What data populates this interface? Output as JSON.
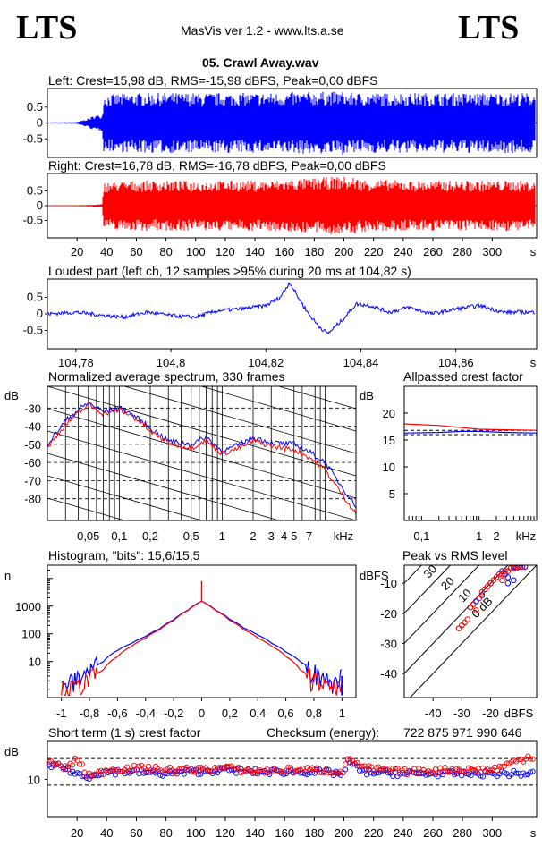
{
  "header": {
    "logo_left": "LTS",
    "logo_right": "LTS",
    "app_title": "MasVis ver 1.2 - www.lts.a.se",
    "file_title": "05. Crawl Away.wav"
  },
  "chart_data": [
    {
      "id": "left",
      "type": "line",
      "title": "Left: Crest=15,98 dB, RMS=-15,98 dBFS, Peak=0,00 dBFS",
      "color": "#0000ff",
      "ylim": [
        -1,
        1
      ],
      "yticks": [
        "0.5",
        "0",
        "-0.5"
      ],
      "xlim": [
        0,
        330
      ],
      "envelope": {
        "x": [
          0,
          20,
          28,
          32,
          37,
          38,
          60,
          100,
          104.8,
          106,
          150,
          200,
          203,
          207,
          210,
          250,
          300,
          330
        ],
        "amp": [
          0.02,
          0.03,
          0.15,
          0.25,
          0.25,
          0.9,
          0.95,
          0.95,
          0.9,
          0.95,
          0.95,
          1.0,
          0.9,
          1.0,
          0.95,
          0.95,
          0.95,
          0.95
        ]
      }
    },
    {
      "id": "right",
      "type": "line",
      "title": "Right: Crest=16,78 dB, RMS=-16,78 dBFS, Peak=0,00 dBFS",
      "color": "#ff0000",
      "ylim": [
        -1,
        1
      ],
      "yticks": [
        "0.5",
        "0",
        "-0.5"
      ],
      "xlim": [
        0,
        330
      ],
      "xticks": [
        "20",
        "40",
        "60",
        "80",
        "100",
        "120",
        "140",
        "160",
        "180",
        "200",
        "220",
        "240",
        "260",
        "280",
        "300"
      ],
      "xunit": "s",
      "envelope": {
        "x": [
          0,
          20,
          30,
          37,
          38,
          60,
          100,
          150,
          200,
          203,
          207,
          210,
          250,
          300,
          330
        ],
        "amp": [
          0.01,
          0.02,
          0.03,
          0.05,
          0.8,
          0.85,
          0.85,
          0.85,
          1.0,
          0.9,
          1.0,
          0.9,
          0.85,
          0.85,
          0.85
        ]
      }
    },
    {
      "id": "loudest",
      "type": "line",
      "title": "Loudest part (left  ch, 12 samples >95% during 20 ms at 104,82 s)",
      "color": "#0000ff",
      "ylim": [
        -1,
        1
      ],
      "yticks": [
        "0.5",
        "0",
        "-0.5"
      ],
      "xlim": [
        104.774,
        104.877
      ],
      "xticks": [
        "104,78",
        "104,8",
        "104,82",
        "104,84",
        "104,86"
      ],
      "xunit": "s",
      "x": [
        104.774,
        104.78,
        104.786,
        104.79,
        104.795,
        104.8,
        104.805,
        104.81,
        104.815,
        104.82,
        104.823,
        104.825,
        104.827,
        104.829,
        104.831,
        104.833,
        104.836,
        104.839,
        104.842,
        104.846,
        104.85,
        104.855,
        104.86,
        104.865,
        104.87,
        104.877
      ],
      "y": [
        0.0,
        0.05,
        -0.05,
        -0.1,
        0.05,
        -0.05,
        -0.1,
        0.1,
        0.15,
        0.25,
        0.5,
        0.95,
        0.45,
        0.0,
        -0.35,
        -0.6,
        -0.2,
        0.3,
        0.25,
        0.05,
        0.2,
        0.0,
        0.15,
        0.25,
        0.05,
        0.05
      ]
    },
    {
      "id": "spectrum",
      "type": "line",
      "title": "Normalized average spectrum, 330 frames",
      "ylabel": "dB",
      "ylim": [
        -92,
        -18
      ],
      "yticks": [
        "-30",
        "-40",
        "-50",
        "-60",
        "-70",
        "-80"
      ],
      "xscale": "log",
      "xlim": [
        0.02,
        20
      ],
      "xticks": [
        "0,05",
        "0,1",
        "0,2",
        "0,5",
        "1",
        "2",
        "3",
        "4",
        "5",
        "7"
      ],
      "xunit": "kHz",
      "series": [
        {
          "color": "#0000ff",
          "x": [
            0.02,
            0.03,
            0.04,
            0.05,
            0.07,
            0.1,
            0.13,
            0.17,
            0.2,
            0.3,
            0.5,
            0.7,
            1,
            1.5,
            2,
            3,
            5,
            7,
            10,
            14,
            20
          ],
          "y": [
            -50,
            -37,
            -31,
            -27,
            -32,
            -30,
            -33,
            -38,
            -41,
            -48,
            -50,
            -46,
            -54,
            -50,
            -46,
            -49,
            -50,
            -54,
            -60,
            -72,
            -84
          ]
        },
        {
          "color": "#ff0000",
          "x": [
            0.02,
            0.03,
            0.04,
            0.05,
            0.07,
            0.1,
            0.13,
            0.17,
            0.2,
            0.3,
            0.5,
            0.7,
            1,
            1.5,
            2,
            3,
            5,
            7,
            10,
            14,
            20
          ],
          "y": [
            -52,
            -39,
            -33,
            -28,
            -33,
            -31,
            -34,
            -39,
            -43,
            -49,
            -52,
            -48,
            -55,
            -52,
            -48,
            -51,
            -53,
            -57,
            -64,
            -76,
            -88
          ]
        }
      ]
    },
    {
      "id": "allpassed",
      "type": "line",
      "title": "Allpassed crest factor",
      "ylabel": "dB",
      "ylim": [
        0,
        25
      ],
      "yticks": [
        "20",
        "15",
        "10",
        "5"
      ],
      "xscale": "log",
      "xlim": [
        0.05,
        10
      ],
      "xticks": [
        "0,1",
        "1",
        "2"
      ],
      "xunit": "kHz",
      "refs": [
        16.0,
        16.8
      ],
      "series": [
        {
          "color": "#0000ff",
          "x": [
            0.05,
            0.2,
            0.5,
            1,
            3,
            10
          ],
          "y": [
            16.3,
            16.4,
            16.6,
            16.6,
            16.4,
            16.3
          ]
        },
        {
          "color": "#ff0000",
          "x": [
            0.05,
            0.2,
            0.5,
            1,
            3,
            10
          ],
          "y": [
            18.0,
            17.7,
            17.3,
            17.0,
            16.9,
            16.8
          ]
        }
      ]
    },
    {
      "id": "histogram",
      "type": "line",
      "title": "Histogram, \"bits\": 15,6/15,5",
      "ylabel": "n",
      "yscale": "log",
      "ylim": [
        0.5,
        30000
      ],
      "yticks": [
        "1000",
        "100",
        "10"
      ],
      "xlim": [
        -1.1,
        1.1
      ],
      "xticks": [
        "-1",
        "-0,8",
        "-0,6",
        "-0,4",
        "-0,2",
        "0",
        "0,2",
        "0,4",
        "0,6",
        "0,8",
        "1"
      ],
      "series": [
        {
          "color": "#0000ff",
          "x": [
            -1,
            -0.9,
            -0.8,
            -0.7,
            -0.6,
            -0.5,
            -0.4,
            -0.3,
            -0.2,
            -0.1,
            -0.05,
            0,
            0.05,
            0.1,
            0.2,
            0.3,
            0.4,
            0.5,
            0.6,
            0.7,
            0.8,
            0.9,
            1
          ],
          "y": [
            1,
            2,
            4,
            10,
            25,
            45,
            80,
            150,
            320,
            700,
            1100,
            1500,
            1100,
            700,
            330,
            160,
            90,
            45,
            22,
            10,
            4,
            2,
            3
          ]
        },
        {
          "color": "#ff0000",
          "x": [
            -1,
            -0.9,
            -0.8,
            -0.7,
            -0.6,
            -0.5,
            -0.4,
            -0.3,
            -0.2,
            -0.1,
            -0.05,
            0,
            0.05,
            0.1,
            0.2,
            0.3,
            0.4,
            0.5,
            0.6,
            0.7,
            0.8,
            0.9,
            1
          ],
          "y": [
            1,
            1,
            2,
            5,
            15,
            35,
            70,
            140,
            300,
            680,
            1050,
            1500,
            1050,
            680,
            300,
            140,
            70,
            35,
            15,
            5,
            2,
            1,
            1
          ]
        }
      ],
      "spike": 8000
    },
    {
      "id": "peakrms",
      "type": "scatter",
      "title": "Peak vs RMS level",
      "ylabel": "dBFS",
      "xunit": "dBFS",
      "xlim": [
        -50,
        -4
      ],
      "ylim": [
        -48,
        -4
      ],
      "xticks": [
        "-40",
        "-30",
        "-20"
      ],
      "yticks": [
        "-10",
        "-20",
        "-30",
        "-40"
      ],
      "diag_labels": [
        "40",
        "30",
        "20",
        "10",
        "0 dB"
      ],
      "series": [
        {
          "color": "#0000ff",
          "x": [
            -27,
            -25,
            -23,
            -22,
            -20,
            -18,
            -16,
            -15,
            -14,
            -13,
            -12,
            -11,
            -10,
            -9,
            -8,
            -14,
            -12
          ],
          "y": [
            -18,
            -16,
            -14,
            -12,
            -10,
            -8,
            -6,
            -7,
            -8,
            -5,
            -4.5,
            -5,
            -4.5,
            -4.5,
            -4.5,
            -10,
            -9
          ]
        },
        {
          "color": "#ff0000",
          "x": [
            -31,
            -30,
            -29,
            -28,
            -27,
            -26,
            -24,
            -22,
            -21,
            -20,
            -19,
            -18,
            -17,
            -16,
            -15,
            -14,
            -13,
            -12,
            -11,
            -10,
            -9,
            -16,
            -25,
            -23
          ],
          "y": [
            -25,
            -24,
            -23,
            -22,
            -18,
            -17,
            -15,
            -12,
            -11,
            -10,
            -9,
            -8,
            -7,
            -7,
            -6,
            -6,
            -5,
            -5,
            -4.5,
            -4.5,
            -4.5,
            -9,
            -19,
            -13
          ]
        }
      ]
    },
    {
      "id": "crest",
      "type": "scatter",
      "title": "Short term (1 s) crest factor",
      "ylabel": "dB",
      "ylim": [
        0,
        20
      ],
      "yticks": [
        "10"
      ],
      "xlim": [
        0,
        330
      ],
      "xticks": [
        "20",
        "40",
        "60",
        "80",
        "100",
        "120",
        "140",
        "160",
        "180",
        "200",
        "220",
        "240",
        "260",
        "280",
        "300"
      ],
      "xunit": "s",
      "refs": [
        8.5,
        15.5
      ],
      "series": [
        {
          "color": "#0000ff",
          "x": [
            2,
            8,
            14,
            20,
            26,
            32,
            40,
            60,
            80,
            100,
            120,
            140,
            160,
            180,
            200,
            203,
            206,
            212,
            240,
            270,
            300,
            325
          ],
          "y": [
            13,
            14,
            12.5,
            11.5,
            10.5,
            11.5,
            12,
            12,
            11.5,
            12,
            12.5,
            12,
            12,
            12,
            11.5,
            15,
            14,
            12,
            11.5,
            11.5,
            11.5,
            11.5
          ]
        },
        {
          "color": "#ff0000",
          "x": [
            2,
            8,
            14,
            20,
            26,
            32,
            40,
            60,
            80,
            100,
            120,
            140,
            160,
            180,
            200,
            203,
            206,
            212,
            240,
            270,
            300,
            325
          ],
          "y": [
            14.5,
            13.5,
            13,
            15.5,
            11.5,
            11,
            12.5,
            13,
            12.5,
            12.5,
            13,
            12,
            12.5,
            12.5,
            12,
            16,
            15,
            13,
            12,
            12.5,
            12.5,
            16
          ]
        }
      ]
    }
  ],
  "checksum": {
    "label": "Checksum (energy):",
    "value": "722 875 971 990 646"
  }
}
